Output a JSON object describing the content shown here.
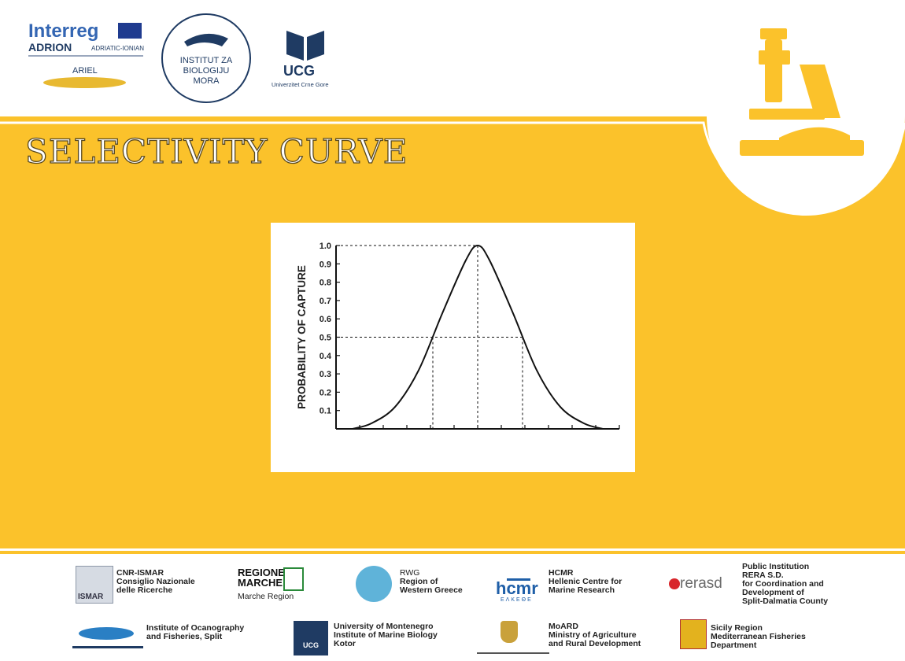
{
  "header": {
    "interreg": "Interreg",
    "adrion": "ADRION",
    "adriatic_ionian": "ADRIATIC-IONIAN",
    "ariel": "ARIEL",
    "ibm_line1": "INSTITUT ZA",
    "ibm_line2": "BIOLOGIJU",
    "ibm_line3": "MORA",
    "ucg": "UCG",
    "ucg_sub": "Univerzitet Crne Gore"
  },
  "title": "SELECTIVITY CURVE",
  "chart_data": {
    "type": "line",
    "ylabel": "PROBABILITY OF CAPTURE",
    "xlabel": "",
    "ylim": [
      0,
      1.0
    ],
    "y_ticks": [
      "0.1",
      "0.2",
      "0.3",
      "0.4",
      "0.5",
      "0.6",
      "0.7",
      "0.8",
      "0.9",
      "1.0"
    ],
    "x_tick_count": 12,
    "x": [
      0.7,
      1.5,
      2.5,
      3.5,
      4.5,
      5.5,
      6.0,
      6.5,
      7.5,
      8.5,
      9.5,
      10.5,
      11.3
    ],
    "series": [
      {
        "values": [
          0.0,
          0.03,
          0.12,
          0.32,
          0.63,
          0.92,
          1.0,
          0.92,
          0.63,
          0.32,
          0.12,
          0.03,
          0.0
        ]
      }
    ],
    "reference_lines": [
      {
        "level": 1.0,
        "x_at": 6.0
      },
      {
        "level": 0.5,
        "x_left": 4.1,
        "x_right": 7.9
      }
    ],
    "grid": false
  },
  "footer": {
    "partners_row1": [
      {
        "name": "CNR-ISMAR",
        "lines": [
          "Consiglio Nazionale",
          "delle Ricerche"
        ],
        "logo": "ISMAR"
      },
      {
        "name": "REGIONE MARCHE",
        "lines": [
          "Marche Region"
        ]
      },
      {
        "name": "RWG",
        "lines": [
          "Region of",
          "Western Greece"
        ]
      },
      {
        "name": "HCMR",
        "lines": [
          "Hellenic Centre for",
          "Marine Research"
        ],
        "logo": "hcmr",
        "logo_sub": "ΕΛΚΕΘΕ"
      },
      {
        "name": "",
        "lines": [
          "Public Institution",
          "RERA S.D.",
          "for Coordination and",
          "Development of",
          "Split-Dalmatia County"
        ],
        "logo": "rerasd"
      }
    ],
    "partners_row2": [
      {
        "name": "",
        "lines": [
          "Institute of Ocanography",
          "and Fisheries, Split"
        ]
      },
      {
        "name": "",
        "lines": [
          "University of Montenegro",
          "Institute of Marine Biology",
          "Kotor"
        ],
        "logo": "UCG"
      },
      {
        "name": "MoARD",
        "lines": [
          "Ministry of Agriculture",
          "and Rural Development"
        ]
      },
      {
        "name": "",
        "lines": [
          "Sicily Region",
          "Mediterranean Fisheries",
          "Department"
        ]
      }
    ]
  },
  "colors": {
    "band": "#fbc22b",
    "text_dark": "#222222",
    "navy": "#1f3b63",
    "interreg_blue": "#3466b3"
  }
}
